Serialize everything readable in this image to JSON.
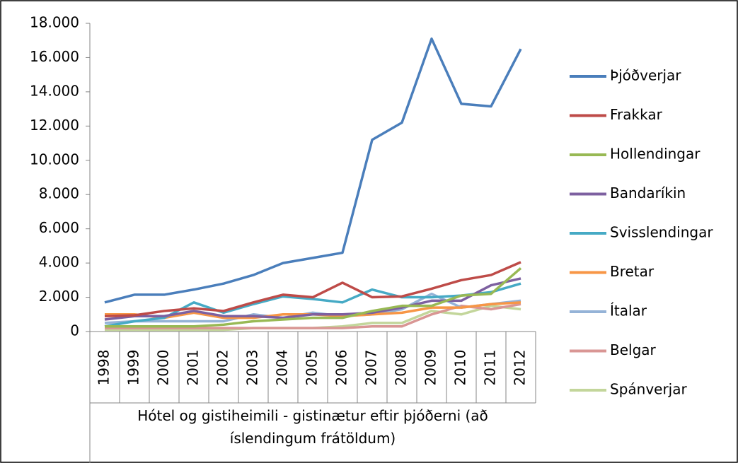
{
  "chart_data": {
    "type": "line",
    "x_label": "Hótel og gistiheimili - gistinætur eftir þjóðerni (að íslendingum frátöldum)",
    "categories": [
      "1998",
      "1999",
      "2000",
      "2001",
      "2002",
      "2003",
      "2004",
      "2005",
      "2006",
      "2007",
      "2008",
      "2009",
      "2010",
      "2011",
      "2012"
    ],
    "ylim": [
      0,
      18000
    ],
    "yticks": [
      0,
      {
        "value": 2000,
        "label": "2.000"
      },
      {
        "value": 4000,
        "label": "4.000"
      },
      {
        "value": 6000,
        "label": "6.000"
      },
      {
        "value": 8000,
        "label": "8.000"
      },
      {
        "value": 10000,
        "label": "10.000"
      },
      {
        "value": 12000,
        "label": "12.000"
      },
      {
        "value": 14000,
        "label": "14.000"
      },
      {
        "value": 16000,
        "label": "16.000"
      },
      {
        "value": 18000,
        "label": "18.000"
      }
    ],
    "legend": "right",
    "series": [
      {
        "name": "Þjóðverjar",
        "color": "#4a7ebb",
        "values": [
          1700,
          2150,
          2150,
          2450,
          2800,
          3300,
          4000,
          4300,
          4600,
          11200,
          12200,
          17100,
          13300,
          13150,
          16500
        ]
      },
      {
        "name": "Frakkar",
        "color": "#be4b48",
        "values": [
          900,
          950,
          1200,
          1350,
          1200,
          1700,
          2150,
          2000,
          2850,
          2000,
          2050,
          2500,
          3000,
          3300,
          4050
        ]
      },
      {
        "name": "Hollendingar",
        "color": "#98b954",
        "values": [
          300,
          300,
          300,
          300,
          400,
          600,
          700,
          800,
          800,
          1200,
          1500,
          1500,
          2100,
          2200,
          3700
        ]
      },
      {
        "name": "Bandaríkin",
        "color": "#7d60a0",
        "values": [
          700,
          900,
          900,
          1200,
          900,
          900,
          800,
          1000,
          1000,
          1100,
          1400,
          1800,
          1800,
          2700,
          3100
        ]
      },
      {
        "name": "Svisslendingar",
        "color": "#46aac5",
        "values": [
          300,
          600,
          800,
          1700,
          1100,
          1600,
          2050,
          1900,
          1700,
          2450,
          2000,
          2000,
          2100,
          2300,
          2800
        ]
      },
      {
        "name": "Bretar",
        "color": "#f79646",
        "values": [
          1000,
          1000,
          800,
          1100,
          800,
          800,
          1000,
          1000,
          900,
          1000,
          1100,
          1400,
          1400,
          1600,
          1700
        ]
      },
      {
        "name": "Ítalar",
        "color": "#95b3d7",
        "values": [
          500,
          600,
          600,
          600,
          600,
          1000,
          800,
          1100,
          900,
          1000,
          1300,
          2200,
          1400,
          1600,
          1800
        ]
      },
      {
        "name": "Belgar",
        "color": "#d99694",
        "values": [
          200,
          200,
          200,
          200,
          200,
          200,
          200,
          200,
          200,
          300,
          300,
          1000,
          1500,
          1300,
          1600
        ]
      },
      {
        "name": "Spánverjar",
        "color": "#c3d69b",
        "values": [
          100,
          100,
          100,
          100,
          100,
          200,
          200,
          200,
          300,
          500,
          500,
          1200,
          1000,
          1500,
          1300
        ]
      }
    ]
  }
}
